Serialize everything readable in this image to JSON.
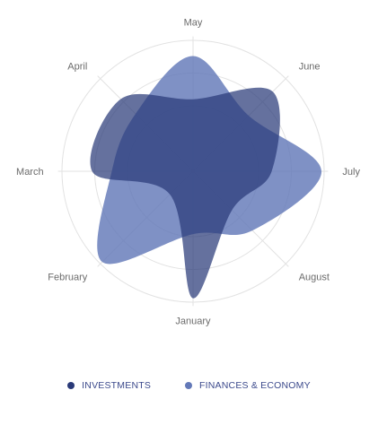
{
  "chart_data": {
    "type": "radar",
    "title": "",
    "categories": [
      "May",
      "June",
      "July",
      "August",
      "January",
      "February",
      "March",
      "April"
    ],
    "rmax": 100,
    "grid": true,
    "legend_position": "bottom",
    "series": [
      {
        "name": "INVESTMENTS",
        "color": "#2a3a78",
        "values": [
          55,
          86,
          60,
          42,
          97,
          25,
          77,
          78
        ]
      },
      {
        "name": "FINANCES & ECONOMY",
        "color": "#6379b8",
        "values": [
          88,
          60,
          98,
          64,
          48,
          98,
          62,
          62
        ]
      }
    ]
  }
}
